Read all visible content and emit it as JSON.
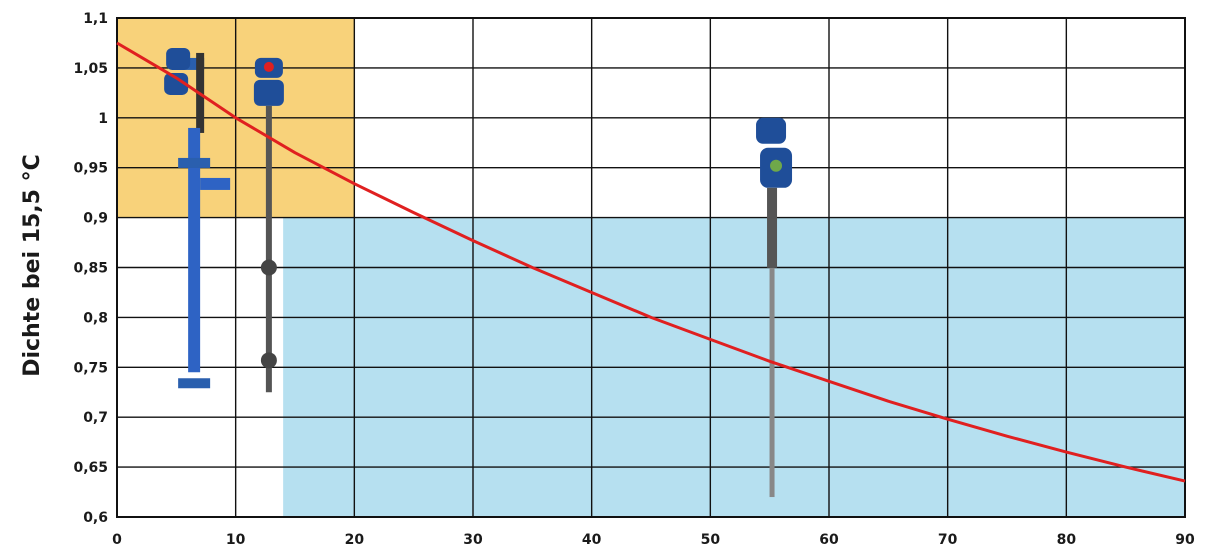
{
  "chart_data": {
    "type": "line",
    "xlabel": "",
    "ylabel": "Dichte bei 15,5 °C",
    "xlim": [
      0,
      90
    ],
    "ylim": [
      0.6,
      1.1
    ],
    "x_ticks": [
      "0",
      "10",
      "20",
      "30",
      "40",
      "50",
      "60",
      "70",
      "80",
      "90"
    ],
    "y_ticks": [
      "0,6",
      "0,65",
      "0,7",
      "0,75",
      "0,8",
      "0,85",
      "0,9",
      "0,95",
      "1",
      "1,05",
      "1,1"
    ],
    "grid": true,
    "series": [
      {
        "color": "#e02020",
        "x": [
          0,
          5,
          10,
          15,
          20,
          25,
          30,
          35,
          40,
          45,
          50,
          55,
          60,
          65,
          70,
          75,
          80,
          85,
          90
        ],
        "y": [
          1.075,
          1.04,
          1.0,
          0.965,
          0.934,
          0.905,
          0.877,
          0.85,
          0.825,
          0.8,
          0.778,
          0.756,
          0.736,
          0.716,
          0.698,
          0.681,
          0.665,
          0.65,
          0.636
        ]
      }
    ],
    "regions": [
      {
        "name": "yellow-region",
        "color": "#f8d27a",
        "x": [
          0,
          20
        ],
        "y": [
          0.9,
          1.1
        ]
      },
      {
        "name": "blue-region",
        "color": "#b6e0f0",
        "x": [
          14,
          90
        ],
        "y": [
          0.6,
          0.9
        ]
      }
    ],
    "illustrations": [
      {
        "icon": "float-chamber-level-switch-icon",
        "x": 6.5,
        "y": [
          0.725,
          1.07
        ]
      },
      {
        "icon": "float-level-transmitter-icon",
        "x": 12.8,
        "y": [
          0.725,
          1.06
        ]
      },
      {
        "icon": "probe-level-transmitter-icon",
        "x": 55.2,
        "y": [
          0.62,
          1.0
        ]
      }
    ]
  }
}
